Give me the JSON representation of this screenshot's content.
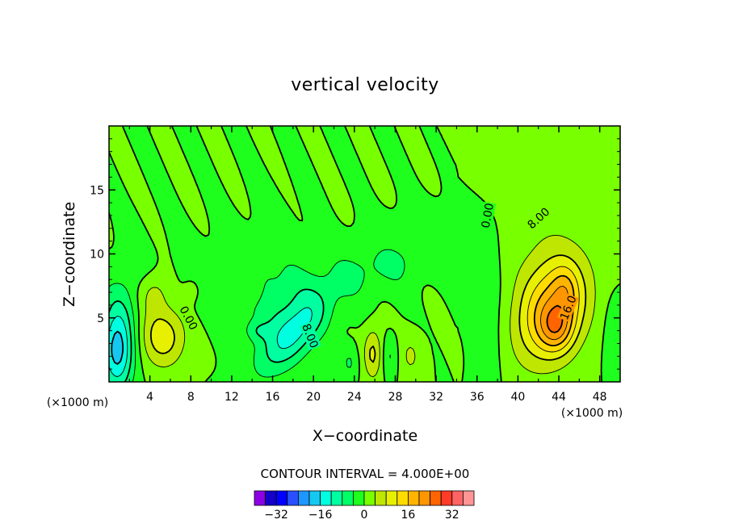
{
  "chart_data": {
    "type": "contour",
    "title": "vertical velocity",
    "xlabel": "X−coordinate",
    "ylabel": "Z−coordinate",
    "x_unit_left": "(×1000 m)",
    "x_unit_right": "(×1000 m)",
    "xlim": [
      0,
      50
    ],
    "ylim": [
      0,
      20
    ],
    "x_ticks": [
      4,
      8,
      12,
      16,
      20,
      24,
      28,
      32,
      36,
      40,
      44,
      48
    ],
    "x_tick_labels": [
      "4",
      "8",
      "12",
      "16",
      "20",
      "24",
      "28",
      "32",
      "36",
      "40",
      "44",
      "48"
    ],
    "y_ticks": [
      5,
      10,
      15
    ],
    "y_tick_labels": [
      "5",
      "10",
      "15"
    ],
    "contour_interval_text": "CONTOUR INTERVAL = 4.000E+00",
    "contour_interval": 4,
    "contour_labels": [
      {
        "text": "0.00",
        "x": 7.8,
        "z": 5.0,
        "angle": 62
      },
      {
        "text": "8.00",
        "x": 19.7,
        "z": 3.6,
        "angle": 68
      },
      {
        "text": "0.00",
        "x": 37.0,
        "z": 13.0,
        "angle": -80
      },
      {
        "text": "8.00",
        "x": 42.0,
        "z": 12.8,
        "angle": -42
      },
      {
        "text": "16.0",
        "x": 44.9,
        "z": 5.8,
        "angle": -68
      }
    ],
    "features": [
      {
        "name": "updraft core",
        "center_x": 43,
        "center_z": 5,
        "max": 24
      },
      {
        "name": "downdraft",
        "center_x": 1,
        "center_z": 2.5,
        "min": -20
      },
      {
        "name": "downdraft",
        "center_x": 19.5,
        "center_z": 3.8,
        "min": -12
      },
      {
        "name": "updraft",
        "center_x": 5,
        "center_z": 3.5,
        "max": 12
      }
    ],
    "colorbar": {
      "ticks": [
        -32,
        -16,
        0,
        16,
        32
      ],
      "tick_labels": [
        "−32",
        "−16",
        "0",
        "16",
        "32"
      ],
      "colors": [
        "#8c00e6",
        "#1400c8",
        "#0000ff",
        "#2850ff",
        "#1e96ff",
        "#14c8f0",
        "#00ffe0",
        "#00ffa0",
        "#00ff64",
        "#1eff1e",
        "#78ff00",
        "#bee600",
        "#e6f000",
        "#ffdc00",
        "#ffb400",
        "#ff9600",
        "#ff6400",
        "#ff3c28",
        "#ff6464",
        "#ff9696"
      ]
    }
  }
}
